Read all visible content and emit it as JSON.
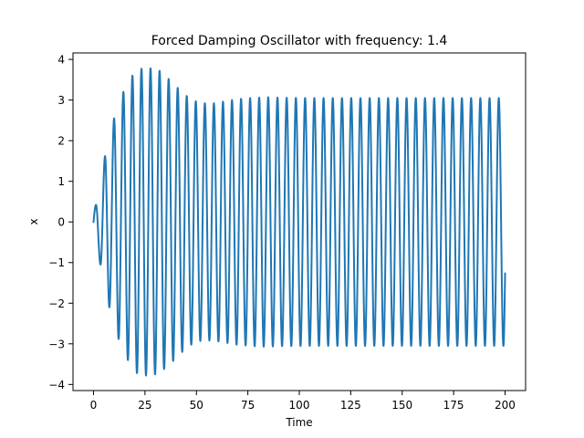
{
  "chart_data": {
    "type": "line",
    "title": "Forced Damping Oscillator with frequency: 1.4",
    "xlabel": "Time",
    "ylabel": "x",
    "xlim": [
      -9.98,
      209.98
    ],
    "ylim": [
      -4.15,
      4.16
    ],
    "xticks": [
      0,
      25,
      50,
      75,
      100,
      125,
      150,
      175,
      200
    ],
    "xtick_labels": [
      "0",
      "25",
      "50",
      "75",
      "100",
      "125",
      "150",
      "175",
      "200"
    ],
    "yticks": [
      -4,
      -3,
      -2,
      -1,
      0,
      1,
      2,
      3,
      4
    ],
    "ytick_labels": [
      "−4",
      "−3",
      "−2",
      "−1",
      "0",
      "1",
      "2",
      "3",
      "4"
    ],
    "grid": false,
    "legend": "none",
    "series": [
      {
        "color": "#1f77b4",
        "x_start": 0,
        "x_end": 200,
        "x_step": 0.05,
        "forcing_frequency": 1.4,
        "steady_amplitude": 3.05,
        "end_value": -1.27,
        "peaks": [
          {
            "x": 0.0,
            "y": 0.0
          },
          {
            "x": 1.2,
            "y": 0.42
          },
          {
            "x": 3.4,
            "y": -1.05
          },
          {
            "x": 5.6,
            "y": 1.62
          },
          {
            "x": 7.7,
            "y": -2.1
          },
          {
            "x": 10.0,
            "y": 2.55
          },
          {
            "x": 12.2,
            "y": -2.88
          },
          {
            "x": 14.5,
            "y": 3.2
          },
          {
            "x": 16.7,
            "y": -3.4
          },
          {
            "x": 18.9,
            "y": 3.6
          },
          {
            "x": 21.1,
            "y": -3.72
          },
          {
            "x": 23.3,
            "y": 3.77
          },
          {
            "x": 25.5,
            "y": -3.78
          },
          {
            "x": 27.7,
            "y": 3.78
          },
          {
            "x": 29.9,
            "y": -3.75
          },
          {
            "x": 32.1,
            "y": 3.72
          },
          {
            "x": 34.3,
            "y": -3.62
          },
          {
            "x": 36.5,
            "y": 3.52
          },
          {
            "x": 38.7,
            "y": -3.42
          },
          {
            "x": 40.9,
            "y": 3.3
          },
          {
            "x": 43.1,
            "y": -3.2
          },
          {
            "x": 45.3,
            "y": 3.1
          },
          {
            "x": 47.5,
            "y": -3.02
          },
          {
            "x": 49.7,
            "y": 2.97
          },
          {
            "x": 51.9,
            "y": -2.93
          },
          {
            "x": 54.1,
            "y": 2.92
          },
          {
            "x": 56.3,
            "y": -2.92
          },
          {
            "x": 58.5,
            "y": 2.92
          },
          {
            "x": 60.7,
            "y": -2.94
          },
          {
            "x": 62.9,
            "y": 2.96
          },
          {
            "x": 65.1,
            "y": -2.98
          },
          {
            "x": 67.3,
            "y": 3.0
          },
          {
            "x": 69.5,
            "y": -3.02
          },
          {
            "x": 71.7,
            "y": 3.03
          },
          {
            "x": 73.9,
            "y": -3.04
          },
          {
            "x": 76.1,
            "y": 3.05
          },
          {
            "x": 78.3,
            "y": -3.06
          },
          {
            "x": 80.5,
            "y": 3.06
          },
          {
            "x": 82.7,
            "y": -3.07
          },
          {
            "x": 84.9,
            "y": 3.07
          }
        ]
      }
    ]
  }
}
